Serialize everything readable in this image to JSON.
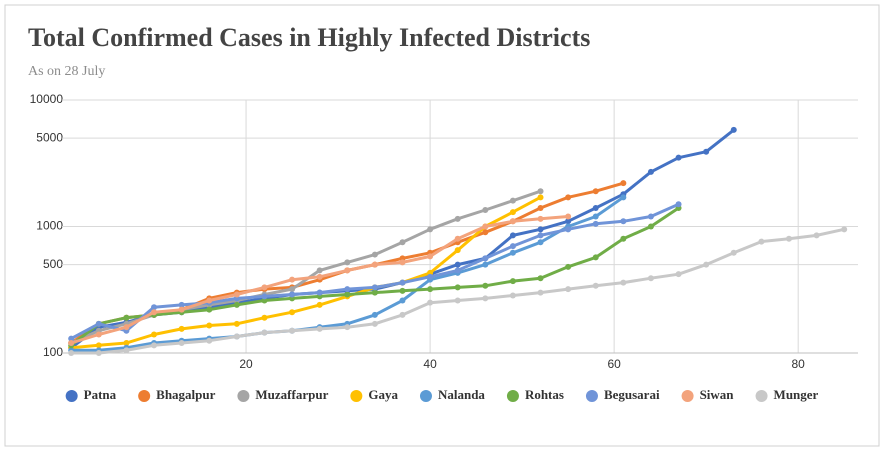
{
  "chart_data": {
    "type": "line",
    "title": "Total Confirmed Cases in Highly Infected Districts",
    "subtitle": "As on 28 July",
    "x": [
      1,
      4,
      7,
      10,
      13,
      16,
      19,
      22,
      25,
      28,
      31,
      34,
      37,
      40,
      43,
      46,
      49,
      52,
      55,
      58,
      61,
      64,
      67,
      70,
      73,
      76,
      79,
      82,
      85
    ],
    "xlim": [
      0,
      86.5
    ],
    "xticks": [
      20,
      40,
      60,
      80
    ],
    "ylim": [
      100,
      10000
    ],
    "yticks": [
      100,
      500,
      1000,
      5000,
      10000
    ],
    "log_scale": true,
    "grid": true,
    "legend": "bottom",
    "series": [
      {
        "name": "Patna",
        "color": "#4472c4",
        "values": [
          110,
          160,
          175,
          200,
          210,
          230,
          250,
          270,
          290,
          300,
          310,
          320,
          360,
          420,
          500,
          560,
          850,
          950,
          1100,
          1400,
          1800,
          2700,
          3500,
          3900,
          5800,
          null,
          null,
          null,
          null
        ]
      },
      {
        "name": "Bhagalpur",
        "color": "#ed7d31",
        "values": [
          120,
          170,
          190,
          200,
          220,
          270,
          300,
          320,
          330,
          380,
          450,
          500,
          560,
          620,
          750,
          900,
          1100,
          1400,
          1700,
          1900,
          2200,
          null,
          null,
          null,
          null,
          null,
          null,
          null,
          null
        ]
      },
      {
        "name": "Muzaffarpur",
        "color": "#a5a5a5",
        "values": [
          120,
          150,
          170,
          200,
          220,
          240,
          260,
          290,
          320,
          450,
          520,
          600,
          750,
          950,
          1150,
          1350,
          1600,
          1900,
          null,
          null,
          null,
          null,
          null,
          null,
          null,
          null,
          null,
          null,
          null
        ]
      },
      {
        "name": "Gaya",
        "color": "#ffc000",
        "values": [
          110,
          115,
          120,
          140,
          155,
          165,
          170,
          190,
          210,
          240,
          280,
          330,
          360,
          430,
          650,
          1000,
          1300,
          1700,
          null,
          null,
          null,
          null,
          null,
          null,
          null,
          null,
          null,
          null,
          null
        ]
      },
      {
        "name": "Nalanda",
        "color": "#5b9bd5",
        "values": [
          105,
          105,
          110,
          120,
          125,
          130,
          135,
          145,
          150,
          160,
          170,
          200,
          260,
          380,
          430,
          500,
          620,
          750,
          1000,
          1200,
          1700,
          null,
          null,
          null,
          null,
          null,
          null,
          null,
          null
        ]
      },
      {
        "name": "Rohtas",
        "color": "#70ad47",
        "values": [
          115,
          170,
          190,
          200,
          210,
          220,
          240,
          260,
          270,
          280,
          290,
          300,
          310,
          320,
          330,
          340,
          370,
          390,
          480,
          570,
          800,
          1000,
          1400,
          null,
          null,
          null,
          null,
          null,
          null
        ]
      },
      {
        "name": "Begusarai",
        "color": "#7094d8",
        "values": [
          130,
          170,
          150,
          230,
          240,
          250,
          270,
          280,
          290,
          300,
          320,
          330,
          360,
          400,
          450,
          560,
          700,
          850,
          950,
          1050,
          1100,
          1200,
          1500,
          null,
          null,
          null,
          null,
          null,
          null
        ]
      },
      {
        "name": "Siwan",
        "color": "#f3a37c",
        "values": [
          120,
          140,
          160,
          210,
          220,
          260,
          290,
          330,
          380,
          400,
          450,
          500,
          520,
          580,
          800,
          1000,
          1100,
          1150,
          1200,
          null,
          null,
          null,
          null,
          null,
          null,
          null,
          null,
          null,
          null
        ]
      },
      {
        "name": "Munger",
        "color": "#c8c8c8",
        "values": [
          100,
          100,
          105,
          115,
          120,
          125,
          135,
          145,
          150,
          155,
          160,
          170,
          200,
          250,
          260,
          270,
          285,
          300,
          320,
          340,
          360,
          390,
          420,
          500,
          620,
          760,
          800,
          850,
          950
        ]
      }
    ]
  }
}
